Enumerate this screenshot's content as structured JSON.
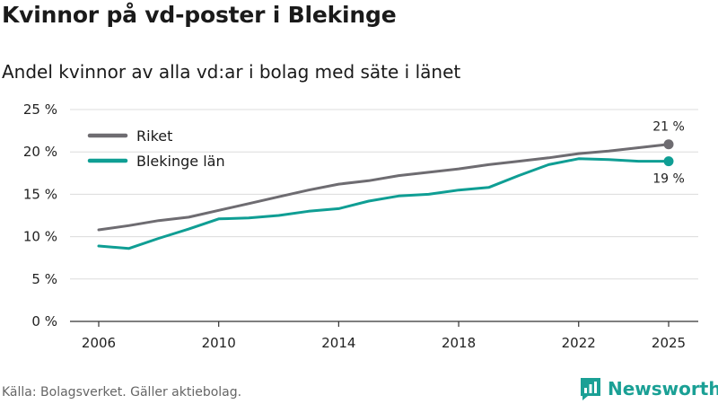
{
  "title": "Kvinnor på vd-poster i Blekinge",
  "subtitle": "Andel kvinnor av alla vd:ar i bolag med säte i länet",
  "source": "Källa: Bolagsverket. Gäller aktiebolag.",
  "brand": {
    "name": "Newsworthy",
    "icon": "bar-chart-logo-icon",
    "color": "#1aa095"
  },
  "chart_data": {
    "type": "line",
    "title": "Andel kvinnor av alla vd:ar i bolag med säte i länet",
    "xlabel": "",
    "ylabel": "",
    "x": [
      2006,
      2007,
      2008,
      2009,
      2010,
      2011,
      2012,
      2013,
      2014,
      2015,
      2016,
      2017,
      2018,
      2019,
      2020,
      2021,
      2022,
      2023,
      2024,
      2025
    ],
    "x_ticks": [
      2006,
      2010,
      2014,
      2018,
      2022,
      2025
    ],
    "xlim": [
      2006,
      2025
    ],
    "ylim": [
      0,
      25
    ],
    "y_ticks": [
      0,
      5,
      10,
      15,
      20,
      25
    ],
    "y_tick_labels": [
      "0 %",
      "5 %",
      "10 %",
      "15 %",
      "20 %",
      "25 %"
    ],
    "grid": true,
    "legend_position": "top-left",
    "series": [
      {
        "name": "Riket",
        "color": "#6e6c71",
        "values": [
          10.8,
          11.3,
          11.9,
          12.3,
          13.1,
          13.9,
          14.7,
          15.5,
          16.2,
          16.6,
          17.2,
          17.6,
          18.0,
          18.5,
          18.9,
          19.3,
          19.8,
          20.1,
          20.5,
          20.9
        ],
        "end_label": "21 %"
      },
      {
        "name": "Blekinge län",
        "color": "#0f9e94",
        "values": [
          8.9,
          8.6,
          9.8,
          10.9,
          12.1,
          12.2,
          12.5,
          13.0,
          13.3,
          14.2,
          14.8,
          15.0,
          15.5,
          15.8,
          17.2,
          18.5,
          19.2,
          19.1,
          18.9,
          18.9
        ],
        "end_label": "19 %"
      }
    ]
  }
}
